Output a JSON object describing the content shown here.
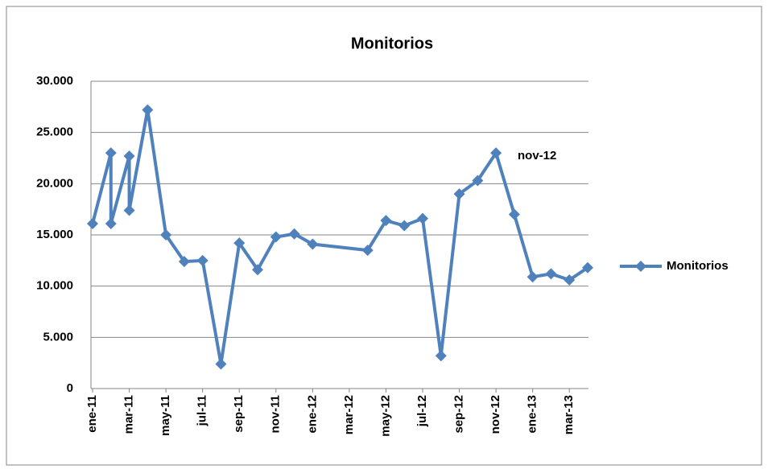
{
  "chart_data": {
    "type": "line",
    "title": "Monitorios",
    "x": [
      "2011-01",
      "2011-02",
      "2011-02",
      "2011-03",
      "2011-03",
      "2011-04",
      "2011-05",
      "2011-06",
      "2011-07",
      "2011-08",
      "2011-09",
      "2011-10",
      "2011-11",
      "2011-12",
      "2012-01",
      "2012-04",
      "2012-05",
      "2012-06",
      "2012-07",
      "2012-08",
      "2012-09",
      "2012-10",
      "2012-11",
      "2012-12",
      "2013-01",
      "2013-02",
      "2013-03",
      "2013-04"
    ],
    "series": [
      {
        "name": "Monitorios",
        "color": "#4f81bd",
        "values": [
          16100,
          23000,
          16100,
          22700,
          17400,
          27200,
          15000,
          12400,
          12500,
          2400,
          14200,
          11600,
          14800,
          15100,
          14100,
          13500,
          16400,
          15900,
          16600,
          3200,
          19000,
          20300,
          23000,
          17000,
          10900,
          11200,
          10600,
          11800
        ]
      }
    ],
    "xlim": [
      "2011-01",
      "2013-04"
    ],
    "xticks": [
      {
        "value": "2011-01",
        "label": "ene-11"
      },
      {
        "value": "2011-03",
        "label": "mar-11"
      },
      {
        "value": "2011-05",
        "label": "may-11"
      },
      {
        "value": "2011-07",
        "label": "jul-11"
      },
      {
        "value": "2011-09",
        "label": "sep-11"
      },
      {
        "value": "2011-11",
        "label": "nov-11"
      },
      {
        "value": "2012-01",
        "label": "ene-12"
      },
      {
        "value": "2012-03",
        "label": "mar-12"
      },
      {
        "value": "2012-05",
        "label": "may-12"
      },
      {
        "value": "2012-07",
        "label": "jul-12"
      },
      {
        "value": "2012-09",
        "label": "sep-12"
      },
      {
        "value": "2012-11",
        "label": "nov-12"
      },
      {
        "value": "2013-01",
        "label": "ene-13"
      },
      {
        "value": "2013-03",
        "label": "mar-13"
      }
    ],
    "ylim": [
      0,
      30000
    ],
    "yticks": [
      0,
      {
        "value": 5000,
        "label": "5.000"
      },
      {
        "value": 10000,
        "label": "10.000"
      },
      {
        "value": 15000,
        "label": "15.000"
      },
      {
        "value": 20000,
        "label": "20.000"
      },
      {
        "value": 25000,
        "label": "25.000"
      },
      {
        "value": 30000,
        "label": "30.000"
      }
    ],
    "grid": true,
    "legend": "right",
    "annotation": "nov-12"
  }
}
